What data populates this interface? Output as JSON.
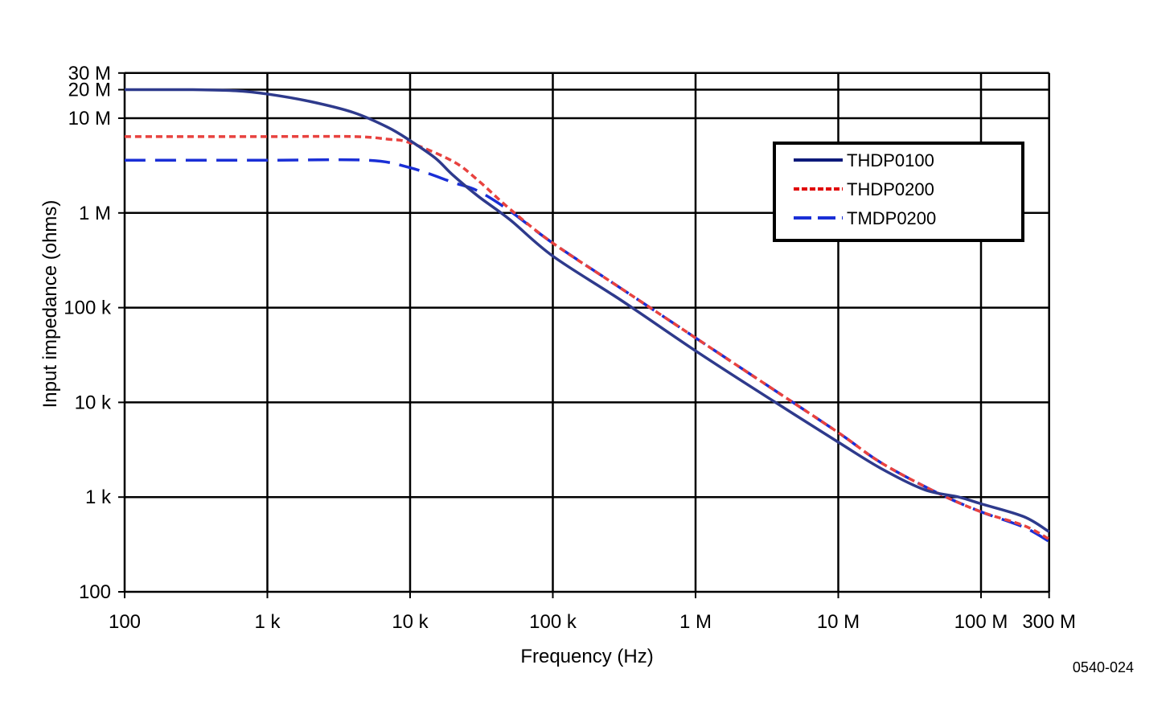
{
  "chart_data": {
    "type": "line",
    "title": "",
    "xlabel": "Frequency (Hz)",
    "ylabel": "Input impedance (ohms)",
    "x_scale": "log",
    "y_scale": "log",
    "xlim": [
      100,
      300000000
    ],
    "ylim": [
      100,
      30000000
    ],
    "grid": true,
    "legend_position": "top-right",
    "x_ticks": [
      {
        "value": 100,
        "label": "100"
      },
      {
        "value": 1000,
        "label": "1 k"
      },
      {
        "value": 10000,
        "label": "10 k"
      },
      {
        "value": 100000,
        "label": "100 k"
      },
      {
        "value": 1000000,
        "label": "1 M"
      },
      {
        "value": 10000000,
        "label": "10 M"
      },
      {
        "value": 100000000,
        "label": "100 M"
      },
      {
        "value": 300000000,
        "label": "300 M"
      }
    ],
    "y_ticks": [
      {
        "value": 100,
        "label": "100"
      },
      {
        "value": 1000,
        "label": "1 k"
      },
      {
        "value": 10000,
        "label": "10 k"
      },
      {
        "value": 100000,
        "label": "100 k"
      },
      {
        "value": 1000000,
        "label": "1 M"
      },
      {
        "value": 10000000,
        "label": "10 M"
      },
      {
        "value": 20000000,
        "label": "20 M"
      },
      {
        "value": 30000000,
        "label": "30 M"
      }
    ],
    "series": [
      {
        "name": "THDP0100",
        "color": "#2e3a8c",
        "dash": "solid",
        "points": [
          [
            100,
            20000000
          ],
          [
            300,
            20000000
          ],
          [
            600,
            19500000
          ],
          [
            1000,
            18000000
          ],
          [
            2000,
            15000000
          ],
          [
            4000,
            11500000
          ],
          [
            7000,
            8000000
          ],
          [
            10000,
            5800000
          ],
          [
            15000,
            3800000
          ],
          [
            20000,
            2500000
          ],
          [
            30000,
            1500000
          ],
          [
            50000,
            850000
          ],
          [
            100000,
            350000
          ],
          [
            300000,
            120000
          ],
          [
            1000000,
            35000
          ],
          [
            3000000,
            12000
          ],
          [
            10000000,
            3800.0
          ],
          [
            20000000,
            2000
          ],
          [
            40000000,
            1200
          ],
          [
            70000000,
            1000
          ],
          [
            100000000,
            850
          ],
          [
            200000000,
            620
          ],
          [
            300000000,
            430
          ]
        ]
      },
      {
        "name": "THDP0200",
        "color": "#e8423f",
        "dash": "short-dash",
        "points": [
          [
            100,
            6400000
          ],
          [
            1000,
            6400000
          ],
          [
            4000,
            6400000
          ],
          [
            7000,
            6000000
          ],
          [
            10000,
            5500000
          ],
          [
            20000,
            3500000
          ],
          [
            30000,
            2200000
          ],
          [
            50000,
            1100000
          ],
          [
            100000,
            480000
          ],
          [
            300000,
            160000
          ],
          [
            1000000,
            48000
          ],
          [
            3000000,
            16000
          ],
          [
            10000000,
            4800
          ],
          [
            20000000,
            2300
          ],
          [
            50000000,
            1100
          ],
          [
            100000000,
            700
          ],
          [
            200000000,
            500
          ],
          [
            300000000,
            360
          ]
        ]
      },
      {
        "name": "TMDP0200",
        "color": "#1a2fd6",
        "dash": "long-dash",
        "points": [
          [
            100,
            3600000
          ],
          [
            1000,
            3600000
          ],
          [
            5000,
            3600000
          ],
          [
            10000,
            3000000
          ],
          [
            20000,
            2100000
          ],
          [
            30000,
            1700000
          ],
          [
            50000,
            1050000
          ],
          [
            100000,
            480000
          ],
          [
            300000,
            160000
          ],
          [
            1000000,
            48000
          ],
          [
            3000000,
            16000
          ],
          [
            10000000,
            4800
          ],
          [
            20000000,
            2300
          ],
          [
            50000000,
            1100
          ],
          [
            100000000,
            700
          ],
          [
            200000000,
            480
          ],
          [
            300000000,
            340
          ]
        ]
      }
    ]
  },
  "figure_id": "0540-024"
}
